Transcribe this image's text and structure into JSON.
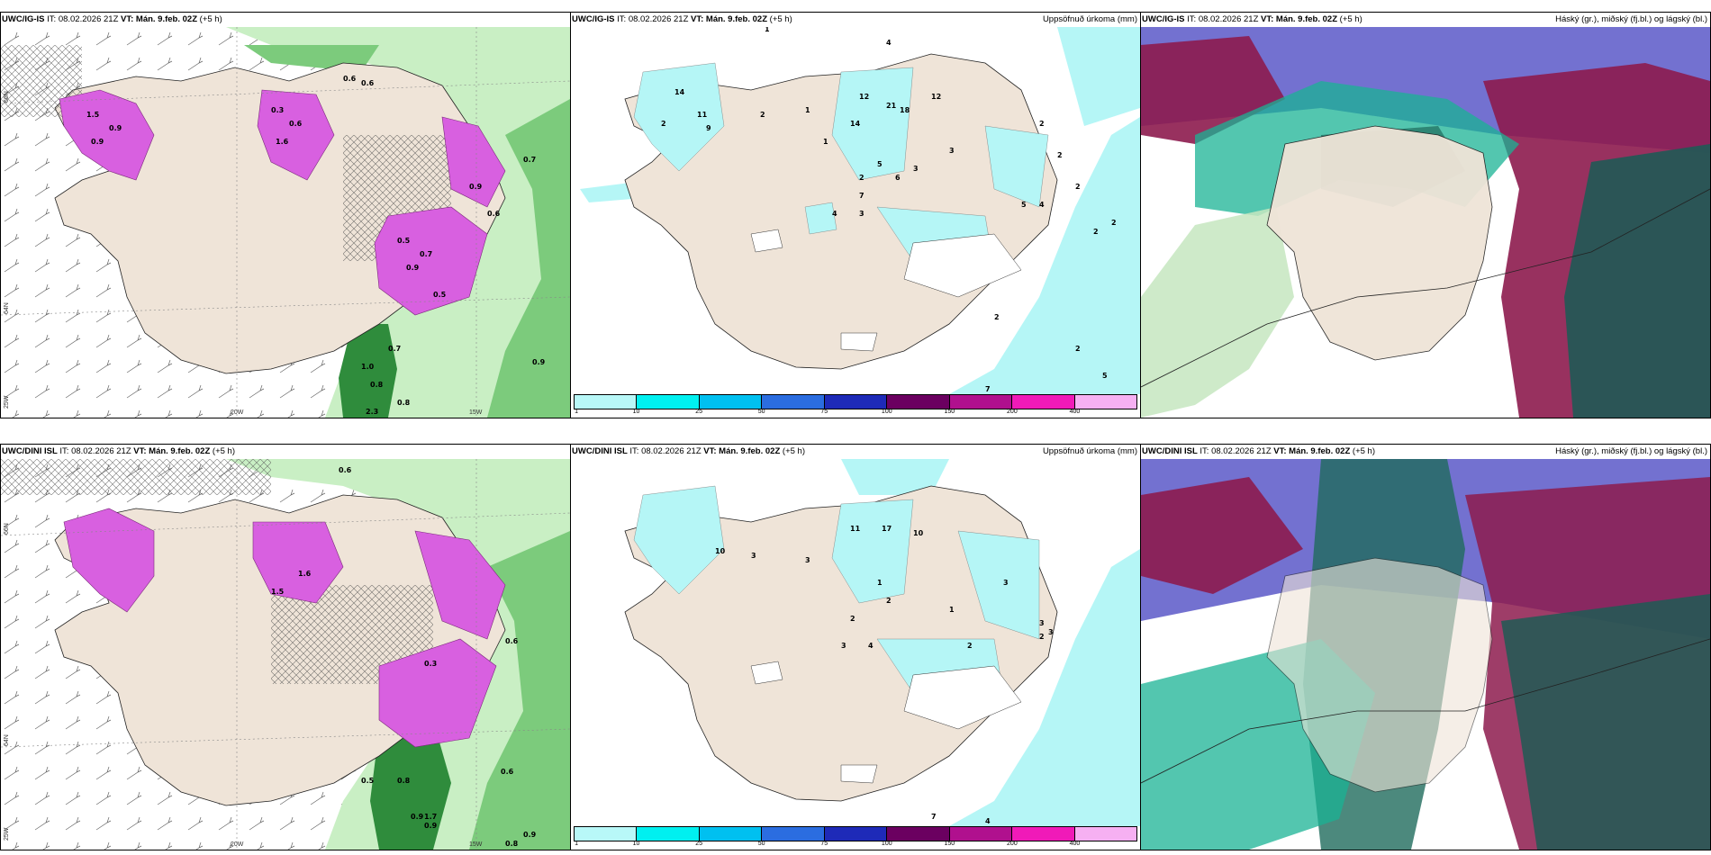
{
  "rows": [
    {
      "model": "UWC/IG-IS",
      "it_label": "IT:",
      "it_value": "08.02.2026 21Z",
      "vt_label": "VT:",
      "vt_value": "Mán. 9.feb. 02Z",
      "lead": "(+5 h)"
    },
    {
      "model": "UWC/DINI ISL",
      "it_label": "IT:",
      "it_value": "08.02.2026 21Z",
      "vt_label": "VT:",
      "vt_value": "Mán. 9.feb. 02Z",
      "lead": "(+5 h)"
    }
  ],
  "precip_title": "Uppsöfnuð úrkoma (mm)",
  "cloud_title": "Háský (gr.), miðský (fj.bl.) og lágský (bl.)",
  "axis_labels": {
    "lon_20w": "20W",
    "lon_15w": "15W",
    "lat_66n": "66N",
    "lat_64n": "64N",
    "lon_25w": "25W"
  },
  "colorbar": {
    "ticks": [
      "1",
      "10",
      "25",
      "50",
      "75",
      "100",
      "150",
      "200",
      "400"
    ],
    "colors": [
      "#b8f8f8",
      "#00f0f0",
      "#00c0f0",
      "#2b6de0",
      "#1e2ab8",
      "#6b0060",
      "#b0108e",
      "#f01ab8",
      "#f6b0f2"
    ]
  },
  "colors": {
    "land": "#efe4d8",
    "sea_green_light": "#c9efc4",
    "sea_green_mid": "#7ccb7c",
    "sea_green_dark": "#1e7a30",
    "snow_magenta": "#d860e0",
    "precip_cyan": "#b5f6f6",
    "cloud_purple": "#5b58c8",
    "cloud_maroon": "#8d1b4e",
    "cloud_teal": "#1ab394"
  },
  "panel1_labels_top": [
    "1.5",
    "0.9",
    "0.9",
    "0.3",
    "0.6",
    "1.6",
    "0.5",
    "0.7",
    "0.9",
    "0.8",
    "2.3",
    "0.8",
    "0.7",
    "0.9",
    "1.0",
    "0.5",
    "0.9",
    "0.6",
    "0.6",
    "0.6",
    "0.7"
  ],
  "panel1_labels_bottom": [
    "0.6",
    "0.5",
    "0.8",
    "0.9",
    "0.9",
    "0.8",
    "0.9",
    "1.7",
    "0.6",
    "0.3",
    "1.6",
    "1.5",
    "0.6"
  ],
  "panel2_labels_top": [
    "1",
    "4",
    "14",
    "11",
    "9",
    "12",
    "21",
    "18",
    "12",
    "14",
    "6",
    "2",
    "2",
    "1",
    "1",
    "2",
    "5",
    "7",
    "4",
    "3",
    "3",
    "3",
    "2",
    "2",
    "2",
    "2",
    "5",
    "7",
    "5",
    "4",
    "2",
    "2",
    "2"
  ],
  "panel2_labels_bottom": [
    "3",
    "10",
    "11",
    "17",
    "10",
    "3",
    "1",
    "2",
    "2",
    "3",
    "3",
    "7",
    "4",
    "2",
    "1",
    "2",
    "4",
    "3",
    "3"
  ]
}
